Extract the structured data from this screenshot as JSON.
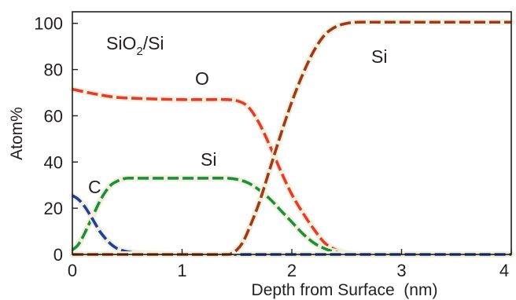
{
  "chart_data": {
    "type": "line",
    "title": "",
    "xlabel": "Depth from Surface  (nm)",
    "ylabel": "Atom%",
    "xlim": [
      0,
      4
    ],
    "ylim": [
      0,
      105
    ],
    "xticks": [
      "0",
      "1",
      "2",
      "3",
      "4"
    ],
    "yticks": [
      "0",
      "20",
      "40",
      "60",
      "80",
      "100"
    ],
    "grid": false,
    "legend": "none",
    "annotations": {
      "sample_label_main": "SiO",
      "sample_label_sub": "2",
      "sample_label_tail": "/Si",
      "o_label": "O",
      "si_oxide_label": "Si",
      "si_substrate_label": "Si",
      "c_label": "C"
    },
    "series": [
      {
        "color": "#e8392b",
        "x": [
          0,
          0.2,
          0.4,
          0.6,
          0.8,
          1.0,
          1.2,
          1.4,
          1.5,
          1.6,
          1.7,
          1.8,
          1.9,
          2.0,
          2.1,
          2.2,
          2.3,
          2.4,
          2.5,
          2.6,
          3.0,
          3.5,
          4.0
        ],
        "values": [
          71.5,
          69.5,
          68,
          67.5,
          67.2,
          67,
          67,
          67,
          66.5,
          64,
          57,
          47,
          36,
          26,
          18,
          11,
          5,
          2,
          0.5,
          0,
          0,
          0,
          0
        ]
      },
      {
        "color": "#1e8e3e",
        "x": [
          0,
          0.05,
          0.1,
          0.15,
          0.2,
          0.25,
          0.3,
          0.35,
          0.4,
          0.45,
          0.5,
          0.6,
          0.8,
          1.0,
          1.2,
          1.4,
          1.5,
          1.6,
          1.7,
          1.8,
          1.9,
          2.0,
          2.1,
          2.2,
          2.3,
          2.4,
          2.5,
          2.6,
          3.0,
          4.0
        ],
        "values": [
          2,
          4,
          8,
          13,
          18,
          23,
          27,
          30,
          31.5,
          32.5,
          33,
          33,
          33,
          33,
          33,
          33,
          32.5,
          31,
          28,
          24,
          19,
          14,
          9,
          5,
          2.5,
          1,
          0.3,
          0,
          0,
          0
        ]
      },
      {
        "color": "#1f3f99",
        "x": [
          0,
          0.05,
          0.1,
          0.15,
          0.2,
          0.25,
          0.3,
          0.35,
          0.4,
          0.45,
          0.5,
          0.6,
          0.8,
          1.0,
          2.0,
          2.5,
          4.0
        ],
        "values": [
          25.5,
          24,
          21.5,
          18,
          14,
          10,
          7,
          4.5,
          2.8,
          1.8,
          1.2,
          0.6,
          0.2,
          0,
          0,
          0,
          0
        ]
      },
      {
        "color": "#9c3a1a",
        "x": [
          0,
          1.0,
          1.4,
          1.45,
          1.5,
          1.55,
          1.6,
          1.7,
          1.8,
          1.9,
          2.0,
          2.1,
          2.2,
          2.3,
          2.4,
          2.5,
          2.6,
          2.7,
          3.0,
          4.0
        ],
        "values": [
          0,
          0,
          0,
          0.5,
          2,
          5,
          10,
          22,
          37,
          52,
          66,
          78,
          88,
          95,
          98.5,
          100,
          100.5,
          100.5,
          100.5,
          100.5
        ]
      }
    ]
  }
}
